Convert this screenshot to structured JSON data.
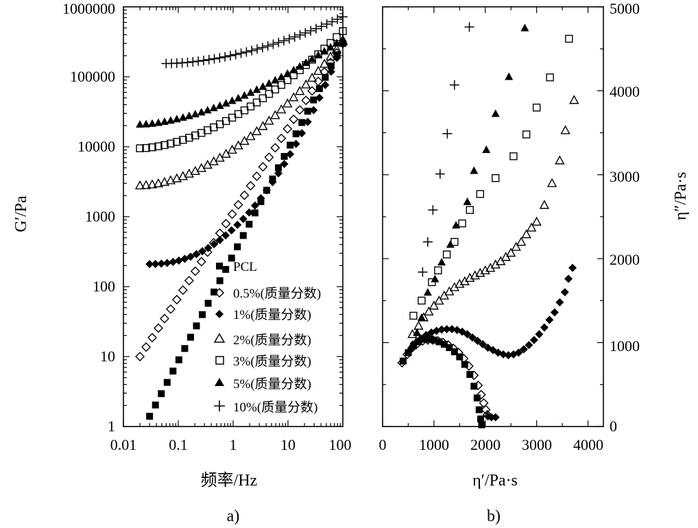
{
  "chart_data": [
    {
      "id": "a",
      "type": "scatter",
      "subtitle": "a)",
      "xlabel": "频率/Hz",
      "ylabel": "G′/Pa",
      "xscale": "log",
      "yscale": "log",
      "xlim": [
        0.01,
        100
      ],
      "ylim": [
        1,
        1000000
      ],
      "xticks": [
        0.01,
        0.1,
        1,
        10,
        100
      ],
      "xtick_labels": [
        "0.01",
        "0.1",
        "1",
        "10",
        "100"
      ],
      "yticks": [
        1,
        10,
        100,
        1000,
        10000,
        100000,
        1000000
      ],
      "ytick_labels": [
        "1",
        "10",
        "100",
        "1000",
        "10000",
        "100000",
        "1000000"
      ],
      "legend_position": "bottom-right",
      "series": [
        {
          "name": "PCL",
          "marker": "filled-square",
          "x_range": [
            0.03,
            100
          ],
          "y_range": [
            1.4,
            300000
          ]
        },
        {
          "name": "0.5%(质量分数)",
          "marker": "open-diamond",
          "x_range": [
            0.02,
            100
          ],
          "y_range": [
            10,
            300000
          ]
        },
        {
          "name": "1%(质量分数)",
          "marker": "filled-diamond",
          "x_range": [
            0.03,
            100
          ],
          "y_range": [
            210,
            300000
          ]
        },
        {
          "name": "2%(质量分数)",
          "marker": "open-triangle",
          "x_range": [
            0.02,
            100
          ],
          "y_range": [
            2800,
            320000
          ]
        },
        {
          "name": "3%(质量分数)",
          "marker": "open-square",
          "x_range": [
            0.02,
            100
          ],
          "y_range": [
            9500,
            450000
          ]
        },
        {
          "name": "5%(质量分数)",
          "marker": "filled-triangle",
          "x_range": [
            0.02,
            100
          ],
          "y_range": [
            21000,
            350000
          ]
        },
        {
          "name": "10%(质量分数)",
          "marker": "plus",
          "x_range": [
            0.06,
            100
          ],
          "y_range": [
            155000,
            720000
          ]
        }
      ]
    },
    {
      "id": "b",
      "type": "scatter",
      "subtitle": "b)",
      "xlabel": "η′/Pa·s",
      "ylabel": "η″/Pa·s",
      "xlim": [
        0,
        4300
      ],
      "ylim": [
        0,
        5000
      ],
      "xticks": [
        0,
        1000,
        2000,
        3000,
        4000
      ],
      "xtick_labels": [
        "0",
        "1000",
        "2000",
        "3000",
        "4000"
      ],
      "yticks": [
        0,
        1000,
        2000,
        3000,
        4000,
        5000
      ],
      "ytick_labels": [
        "0",
        "1000",
        "2000",
        "3000",
        "4000",
        "5000"
      ],
      "yaxis_side": "right",
      "series": [
        {
          "name": "PCL",
          "marker": "filled-square",
          "points": [
            [
              400,
              780
            ],
            [
              500,
              880
            ],
            [
              600,
              960
            ],
            [
              700,
              1010
            ],
            [
              800,
              1040
            ],
            [
              900,
              1040
            ],
            [
              1000,
              1030
            ],
            [
              1100,
              1010
            ],
            [
              1200,
              980
            ],
            [
              1300,
              940
            ],
            [
              1400,
              890
            ],
            [
              1500,
              830
            ],
            [
              1600,
              740
            ],
            [
              1700,
              620
            ],
            [
              1780,
              480
            ],
            [
              1840,
              340
            ],
            [
              1880,
              200
            ],
            [
              1910,
              90
            ],
            [
              1930,
              20
            ]
          ]
        },
        {
          "name": "0.5%(质量分数)",
          "marker": "open-diamond",
          "points": [
            [
              380,
              760
            ],
            [
              480,
              860
            ],
            [
              580,
              940
            ],
            [
              680,
              990
            ],
            [
              780,
              1020
            ],
            [
              880,
              1030
            ],
            [
              980,
              1030
            ],
            [
              1080,
              1020
            ],
            [
              1180,
              1000
            ],
            [
              1280,
              970
            ],
            [
              1380,
              930
            ],
            [
              1480,
              880
            ],
            [
              1580,
              810
            ],
            [
              1680,
              720
            ],
            [
              1780,
              610
            ],
            [
              1860,
              490
            ],
            [
              1920,
              380
            ],
            [
              1970,
              280
            ],
            [
              2010,
              200
            ],
            [
              2040,
              140
            ]
          ]
        },
        {
          "name": "1%(质量分数)",
          "marker": "filled-diamond",
          "points": [
            [
              2050,
              120
            ],
            [
              2120,
              110
            ],
            [
              2200,
              110
            ],
            [
              550,
              920
            ],
            [
              650,
              1000
            ],
            [
              750,
              1050
            ],
            [
              850,
              1090
            ],
            [
              950,
              1120
            ],
            [
              1050,
              1140
            ],
            [
              1150,
              1155
            ],
            [
              1250,
              1160
            ],
            [
              1350,
              1160
            ],
            [
              1450,
              1150
            ],
            [
              1550,
              1130
            ],
            [
              1650,
              1100
            ],
            [
              1750,
              1060
            ],
            [
              1850,
              1020
            ],
            [
              1950,
              980
            ],
            [
              2050,
              940
            ],
            [
              2150,
              910
            ],
            [
              2250,
              880
            ],
            [
              2350,
              860
            ],
            [
              2450,
              850
            ],
            [
              2550,
              860
            ],
            [
              2650,
              880
            ],
            [
              2750,
              920
            ],
            [
              2850,
              970
            ],
            [
              2950,
              1030
            ],
            [
              3050,
              1100
            ],
            [
              3150,
              1180
            ],
            [
              3250,
              1270
            ],
            [
              3350,
              1360
            ],
            [
              3450,
              1480
            ],
            [
              3550,
              1600
            ],
            [
              3620,
              1760
            ],
            [
              3700,
              1890
            ]
          ]
        },
        {
          "name": "2%(质量分数)",
          "marker": "open-triangle",
          "points": [
            [
              580,
              1100
            ],
            [
              700,
              1200
            ],
            [
              800,
              1300
            ],
            [
              900,
              1370
            ],
            [
              1000,
              1440
            ],
            [
              1100,
              1500
            ],
            [
              1200,
              1560
            ],
            [
              1300,
              1610
            ],
            [
              1400,
              1660
            ],
            [
              1500,
              1700
            ],
            [
              1600,
              1730
            ],
            [
              1700,
              1770
            ],
            [
              1800,
              1800
            ],
            [
              1900,
              1830
            ],
            [
              2000,
              1860
            ],
            [
              2100,
              1890
            ],
            [
              2200,
              1930
            ],
            [
              2300,
              1970
            ],
            [
              2400,
              2020
            ],
            [
              2500,
              2070
            ],
            [
              2600,
              2140
            ],
            [
              2700,
              2200
            ],
            [
              2800,
              2290
            ],
            [
              2900,
              2370
            ],
            [
              3000,
              2440
            ],
            [
              3150,
              2640
            ],
            [
              3300,
              2900
            ],
            [
              3450,
              3170
            ],
            [
              3560,
              3530
            ],
            [
              3730,
              3890
            ]
          ]
        },
        {
          "name": "3%(质量分数)",
          "marker": "open-square",
          "points": [
            [
              600,
              1320
            ],
            [
              760,
              1500
            ],
            [
              960,
              1720
            ],
            [
              1080,
              1860
            ],
            [
              1250,
              2050
            ],
            [
              1400,
              2200
            ],
            [
              1550,
              2420
            ],
            [
              1700,
              2580
            ],
            [
              1900,
              2770
            ],
            [
              2200,
              2960
            ],
            [
              2550,
              3220
            ],
            [
              2800,
              3480
            ],
            [
              3000,
              3800
            ],
            [
              3260,
              4160
            ],
            [
              3630,
              4620
            ]
          ]
        },
        {
          "name": "5%(质量分数)",
          "marker": "filled-triangle",
          "points": [
            [
              580,
              980
            ],
            [
              670,
              1120
            ],
            [
              760,
              1300
            ],
            [
              880,
              1600
            ],
            [
              1020,
              1760
            ],
            [
              1150,
              1960
            ],
            [
              1320,
              2170
            ],
            [
              1430,
              2400
            ],
            [
              1650,
              2680
            ],
            [
              1780,
              3050
            ],
            [
              2020,
              3300
            ],
            [
              2200,
              3730
            ],
            [
              2460,
              4170
            ],
            [
              2770,
              4750
            ]
          ]
        },
        {
          "name": "10%(质量分数)",
          "marker": "plus",
          "points": [
            [
              780,
              1840
            ],
            [
              880,
              2200
            ],
            [
              980,
              2580
            ],
            [
              1120,
              3010
            ],
            [
              1260,
              3490
            ],
            [
              1400,
              4070
            ],
            [
              1690,
              4760
            ]
          ]
        }
      ]
    }
  ]
}
